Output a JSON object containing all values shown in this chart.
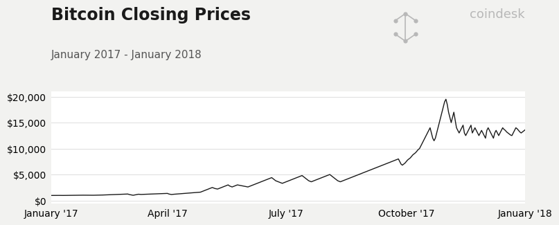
{
  "title": "Bitcoin Closing Prices",
  "subtitle": "January 2017 - January 2018",
  "line_color": "#1a1a1a",
  "line_width": 1.0,
  "bg_color": "#f2f2f0",
  "plot_bg_color": "#ffffff",
  "title_fontsize": 17,
  "subtitle_fontsize": 11,
  "tick_label_fontsize": 10,
  "watermark_color": "#b8b8b8",
  "ylim": [
    -600,
    21000
  ],
  "yticks": [
    0,
    5000,
    10000,
    15000,
    20000
  ],
  "ytick_labels": [
    "$0",
    "$5,000",
    "$10,000",
    "$15,000",
    "$20,000"
  ],
  "xtick_labels": [
    "January '17",
    "April '17",
    "July '17",
    "October '17",
    "January '18"
  ],
  "prices": [
    966,
    970,
    972,
    975,
    978,
    980,
    976,
    970,
    965,
    968,
    972,
    975,
    978,
    982,
    985,
    988,
    990,
    993,
    997,
    1000,
    1005,
    1010,
    1015,
    1020,
    1018,
    1015,
    1012,
    1010,
    1008,
    1006,
    1004,
    1002,
    1005,
    1010,
    1015,
    1020,
    1025,
    1030,
    1040,
    1050,
    1060,
    1070,
    1080,
    1090,
    1100,
    1110,
    1120,
    1130,
    1140,
    1150,
    1160,
    1170,
    1180,
    1190,
    1200,
    1210,
    1220,
    1230,
    1240,
    1150,
    1100,
    1050,
    1000,
    1050,
    1100,
    1150,
    1200,
    1180,
    1160,
    1170,
    1180,
    1190,
    1200,
    1210,
    1220,
    1230,
    1240,
    1250,
    1260,
    1270,
    1280,
    1290,
    1300,
    1310,
    1320,
    1330,
    1340,
    1350,
    1360,
    1250,
    1200,
    1150,
    1180,
    1200,
    1220,
    1240,
    1260,
    1280,
    1300,
    1320,
    1340,
    1360,
    1380,
    1400,
    1420,
    1440,
    1460,
    1480,
    1500,
    1520,
    1540,
    1560,
    1580,
    1600,
    1700,
    1800,
    1900,
    2000,
    2100,
    2200,
    2300,
    2400,
    2500,
    2400,
    2300,
    2250,
    2200,
    2300,
    2400,
    2500,
    2600,
    2700,
    2800,
    2900,
    3000,
    2800,
    2700,
    2600,
    2700,
    2800,
    2900,
    3000,
    2950,
    2900,
    2850,
    2800,
    2750,
    2700,
    2650,
    2600,
    2700,
    2800,
    2900,
    3000,
    3100,
    3200,
    3300,
    3400,
    3500,
    3600,
    3700,
    3800,
    3900,
    4000,
    4100,
    4200,
    4300,
    4400,
    4200,
    4000,
    3800,
    3700,
    3600,
    3500,
    3400,
    3300,
    3400,
    3500,
    3600,
    3700,
    3800,
    3900,
    4000,
    4100,
    4200,
    4300,
    4400,
    4500,
    4600,
    4700,
    4800,
    4600,
    4400,
    4200,
    4000,
    3800,
    3700,
    3600,
    3700,
    3800,
    3900,
    4000,
    4100,
    4200,
    4300,
    4400,
    4500,
    4600,
    4700,
    4800,
    4900,
    5000,
    4800,
    4600,
    4400,
    4200,
    4000,
    3800,
    3700,
    3600,
    3700,
    3800,
    3900,
    4000,
    4100,
    4200,
    4300,
    4400,
    4500,
    4600,
    4700,
    4800,
    4900,
    5000,
    5100,
    5200,
    5300,
    5400,
    5500,
    5600,
    5700,
    5800,
    5900,
    6000,
    6100,
    6200,
    6300,
    6400,
    6500,
    6600,
    6700,
    6800,
    6900,
    7000,
    7100,
    7200,
    7300,
    7400,
    7500,
    7600,
    7700,
    7800,
    7900,
    8000,
    7500,
    7000,
    6800,
    7000,
    7200,
    7500,
    7800,
    8000,
    8200,
    8500,
    8800,
    9000,
    9200,
    9500,
    9800,
    10000,
    10500,
    11000,
    11500,
    12000,
    12500,
    13000,
    13500,
    14000,
    13000,
    12000,
    11500,
    12000,
    13000,
    14000,
    15000,
    16000,
    17000,
    18000,
    19000,
    19500,
    18500,
    17000,
    16000,
    15000,
    16000,
    17000,
    15500,
    14000,
    13500,
    13000,
    13500,
    14000,
    14500,
    13000,
    12500,
    13000,
    13500,
    14000,
    14500,
    13000,
    13500,
    14000,
    13500,
    13000,
    12500,
    13000,
    13500,
    13000,
    12500,
    12000,
    13500,
    14000,
    13500,
    13000,
    12500,
    12000,
    13000,
    13500,
    13000,
    12500,
    13000,
    13500,
    14000,
    13700,
    13500,
    13200,
    13000,
    12800,
    12600,
    12500,
    13000,
    13500,
    14000,
    13800,
    13500,
    13200,
    13000,
    13200,
    13400,
    13600
  ]
}
